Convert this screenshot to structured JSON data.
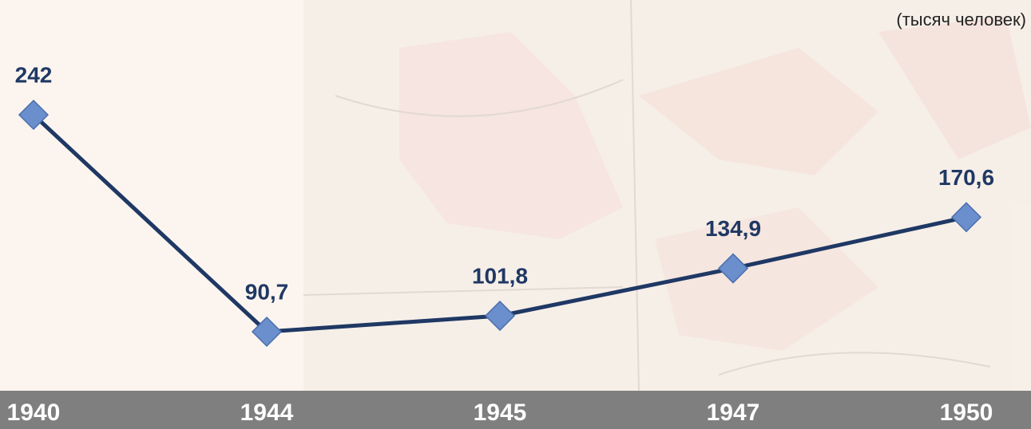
{
  "chart_data": {
    "type": "line",
    "unit_label": "(тысяч человек)",
    "categories": [
      "1940",
      "1944",
      "1945",
      "1947",
      "1950"
    ],
    "values": [
      242,
      90.7,
      101.8,
      134.9,
      170.6
    ],
    "value_labels": [
      "242",
      "90,7",
      "101,8",
      "134,9",
      "170,6"
    ],
    "color": "#1f3864",
    "marker_color": "#6b8fcc"
  }
}
